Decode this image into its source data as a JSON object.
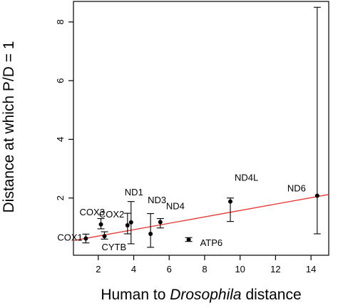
{
  "chart_data": {
    "type": "scatter",
    "title": "",
    "xlabel_parts": [
      "Human to ",
      "Drosophila",
      " distance"
    ],
    "ylabel": "Distance at which P/D = 1",
    "xlim": [
      0.6,
      15.0
    ],
    "ylim": [
      0.05,
      8.7
    ],
    "xticks": [
      2,
      4,
      6,
      8,
      10,
      12,
      14
    ],
    "yticks": [
      2,
      4,
      6,
      8
    ],
    "grid": false,
    "legend": "none",
    "points": [
      {
        "label": "COX1",
        "x": 1.3,
        "y": 0.62,
        "lo": 0.47,
        "hi": 0.77
      },
      {
        "label": "COX3",
        "x": 2.15,
        "y": 1.1,
        "lo": 0.95,
        "hi": 1.3
      },
      {
        "label": "CYTB",
        "x": 2.35,
        "y": 0.7,
        "lo": 0.6,
        "hi": 0.85
      },
      {
        "label": "COX2",
        "x": 3.65,
        "y": 1.07,
        "lo": 0.78,
        "hi": 1.48
      },
      {
        "label": "ND1",
        "x": 3.85,
        "y": 1.17,
        "lo": 0.44,
        "hi": 1.88
      },
      {
        "label": "ND3",
        "x": 4.95,
        "y": 0.78,
        "lo": 0.32,
        "hi": 1.47
      },
      {
        "label": "ND4",
        "x": 5.5,
        "y": 1.18,
        "lo": 0.98,
        "hi": 1.3
      },
      {
        "label": "ATP6",
        "x": 7.1,
        "y": 0.58,
        "lo": 0.52,
        "hi": 0.65
      },
      {
        "label": "ND4L",
        "x": 9.45,
        "y": 1.88,
        "lo": 1.2,
        "hi": 2.0
      },
      {
        "label": "ND6",
        "x": 14.35,
        "y": 2.08,
        "lo": 0.78,
        "hi": 8.5
      }
    ],
    "regression_line": {
      "x": [
        0.6,
        15.0
      ],
      "y": [
        0.55,
        2.12
      ],
      "color": "#e8332e"
    }
  }
}
